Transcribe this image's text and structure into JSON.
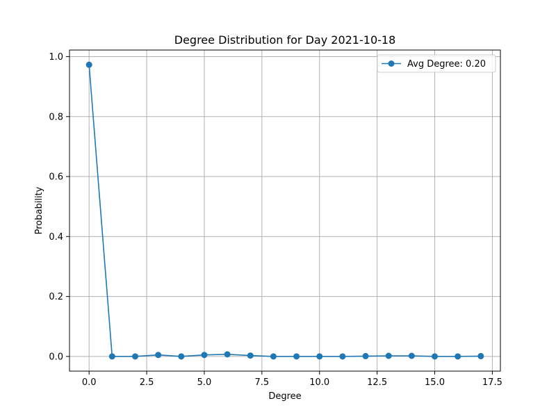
{
  "chart_data": {
    "type": "line",
    "title": "Degree Distribution for Day 2021-10-18",
    "xlabel": "Degree",
    "ylabel": "Probability",
    "xlim": [
      -0.85,
      17.85
    ],
    "ylim": [
      -0.049,
      1.022
    ],
    "xticks": [
      0.0,
      2.5,
      5.0,
      7.5,
      10.0,
      12.5,
      15.0,
      17.5
    ],
    "xtick_labels": [
      "0.0",
      "2.5",
      "5.0",
      "7.5",
      "10.0",
      "12.5",
      "15.0",
      "17.5"
    ],
    "yticks": [
      0.0,
      0.2,
      0.4,
      0.6,
      0.8,
      1.0
    ],
    "ytick_labels": [
      "0.0",
      "0.2",
      "0.4",
      "0.6",
      "0.8",
      "1.0"
    ],
    "grid": true,
    "legend_position": "upper right",
    "series": [
      {
        "name": "Avg Degree: 0.20",
        "color": "#1f77b4",
        "marker": "circle",
        "x": [
          0,
          1,
          2,
          3,
          4,
          5,
          6,
          7,
          8,
          9,
          10,
          11,
          12,
          13,
          14,
          15,
          16,
          17
        ],
        "y": [
          0.973,
          0.0,
          0.0,
          0.005,
          0.0,
          0.005,
          0.007,
          0.003,
          0.0,
          0.0,
          0.0,
          0.0,
          0.001,
          0.002,
          0.002,
          0.0,
          0.0,
          0.001
        ]
      }
    ]
  }
}
